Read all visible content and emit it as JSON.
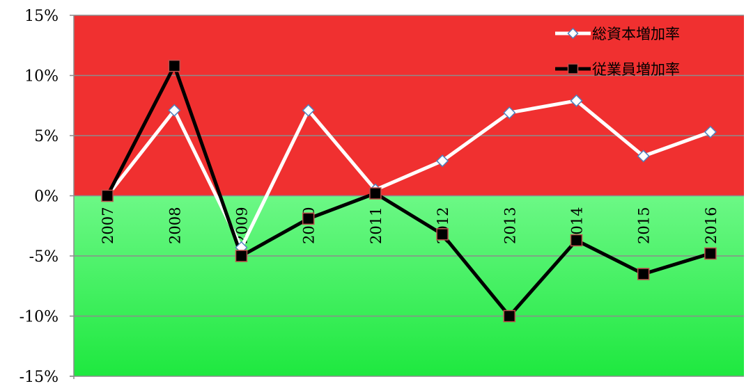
{
  "chart_data": {
    "type": "line",
    "categories": [
      "2007",
      "2008",
      "2009",
      "2010",
      "2011",
      "2012",
      "2013",
      "2014",
      "2015",
      "2016"
    ],
    "series": [
      {
        "name": "総資本増加率",
        "values": [
          0.0,
          7.1,
          -4.3,
          7.1,
          0.5,
          2.9,
          6.9,
          7.9,
          3.3,
          5.3
        ],
        "line_color": "#ffffff",
        "marker": "diamond",
        "marker_fill": "#ffffff",
        "marker_stroke": "#4f81bd"
      },
      {
        "name": "従業員増加率",
        "values": [
          0.0,
          10.8,
          -5.0,
          -1.9,
          0.2,
          -3.2,
          -10.0,
          -3.7,
          -6.5,
          -4.8
        ],
        "line_color": "#000000",
        "marker": "square",
        "marker_fill": "#000000",
        "marker_stroke": "#c0504d"
      }
    ],
    "ylim": [
      -15,
      15
    ],
    "yticks": [
      "15%",
      "10%",
      "5%",
      "0%",
      "-5%",
      "-10%",
      "-15%"
    ],
    "ytick_values": [
      15,
      10,
      5,
      0,
      -5,
      -10,
      -15
    ],
    "gridlines": true,
    "legend_position": "top-right",
    "background": {
      "positive_color": "#f03030",
      "negative_color_top": "#6cf886",
      "negative_color_bottom": "#1ee83f"
    }
  }
}
